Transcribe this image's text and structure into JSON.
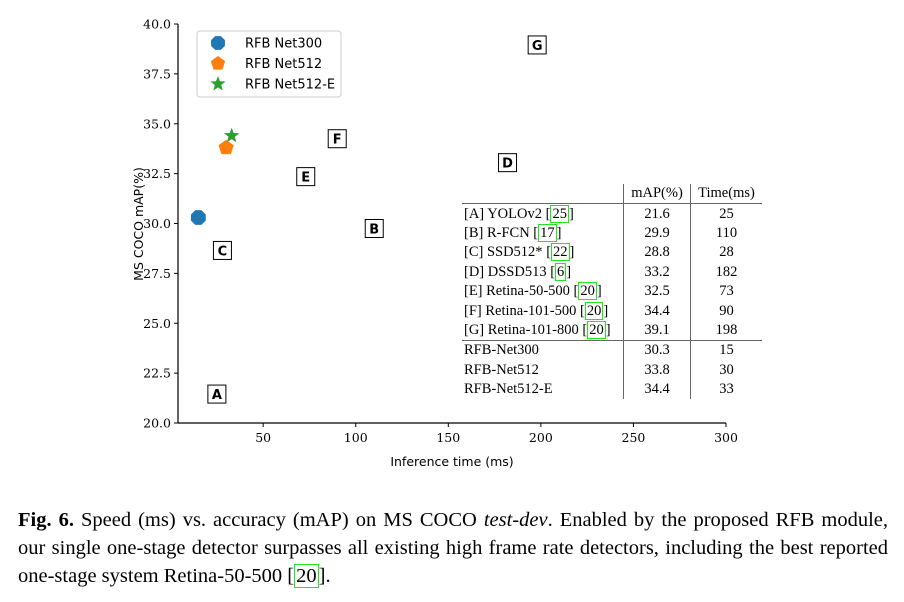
{
  "chart_data": {
    "type": "scatter",
    "xlabel": "Inference time (ms)",
    "ylabel": "MS COCO mAP(%)",
    "xlim": [
      4,
      300
    ],
    "ylim": [
      20,
      40
    ],
    "xticks": [
      "50",
      "100",
      "150",
      "200",
      "250",
      "300"
    ],
    "yticks": [
      "20.0",
      "22.5",
      "25.0",
      "27.5",
      "30.0",
      "32.5",
      "35.0",
      "37.5",
      "40.0"
    ],
    "grid": false,
    "legend_position": "top-left",
    "series": [
      {
        "name": "RFB Net300",
        "marker": "octagon",
        "color": "#1f77b4",
        "x": [
          15
        ],
        "y": [
          30.3
        ]
      },
      {
        "name": "RFB Net512",
        "marker": "pentagon",
        "color": "#ff7f0e",
        "x": [
          30
        ],
        "y": [
          33.8
        ]
      },
      {
        "name": "RFB Net512-E",
        "marker": "star",
        "color": "#2ca02c",
        "x": [
          33
        ],
        "y": [
          34.4
        ]
      }
    ],
    "annotations": [
      {
        "label": "A",
        "x": 25,
        "y": 21.6
      },
      {
        "label": "B",
        "x": 110,
        "y": 29.9
      },
      {
        "label": "C",
        "x": 28,
        "y": 28.8
      },
      {
        "label": "D",
        "x": 182,
        "y": 33.2
      },
      {
        "label": "E",
        "x": 73,
        "y": 32.5
      },
      {
        "label": "F",
        "x": 90,
        "y": 34.4
      },
      {
        "label": "G",
        "x": 198,
        "y": 39.1
      }
    ]
  },
  "table": {
    "headers": [
      "",
      "mAP(%)",
      "Time(ms)"
    ],
    "rows": [
      {
        "name": "[A] YOLOv2",
        "cite": "25",
        "map": "21.6",
        "time": "25"
      },
      {
        "name": "[B] R-FCN",
        "cite": "17",
        "map": "29.9",
        "time": "110"
      },
      {
        "name": "[C] SSD512*",
        "cite": "22",
        "map": "28.8",
        "time": "28"
      },
      {
        "name": "[D] DSSD513",
        "cite": "6",
        "map": "33.2",
        "time": "182"
      },
      {
        "name": "[E] Retina-50-500",
        "cite": "20",
        "map": "32.5",
        "time": "73"
      },
      {
        "name": "[F] Retina-101-500",
        "cite": "20",
        "map": "34.4",
        "time": "90"
      },
      {
        "name": "[G] Retina-101-800",
        "cite": "20",
        "map": "39.1",
        "time": "198",
        "bold_map": true
      },
      {
        "name": "RFB-Net300",
        "map": "30.3",
        "time": "15",
        "bold_time": true,
        "sep": true
      },
      {
        "name": "RFB-Net512",
        "map": "33.8",
        "time": "30"
      },
      {
        "name": "RFB-Net512-E",
        "map": "34.4",
        "time": "33",
        "bold_map": true
      }
    ]
  },
  "caption": {
    "fig": "Fig. 6.",
    "text1": " Speed (ms) vs. accuracy (mAP) on MS COCO ",
    "italic": "test-dev",
    "text2": ". Enabled by the proposed RFB module, our single one-stage detector surpasses all existing high frame rate detectors, including the best reported one-stage system Retina-50-500 ",
    "cite": "20",
    "end": "."
  }
}
